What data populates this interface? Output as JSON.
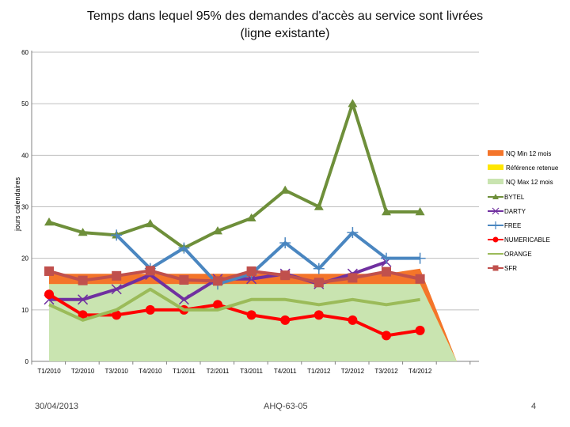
{
  "chart_data": {
    "type": "line",
    "title_line1": "Temps dans lequel 95% des demandes d'accès au service sont livrées",
    "title_line2": "(ligne existante)",
    "ylabel": "jours calendaires",
    "ylim": [
      0,
      60
    ],
    "yticks": [
      0,
      10,
      20,
      30,
      40,
      50,
      60
    ],
    "categories": [
      "T1/2010",
      "T2/2010",
      "T3/2010",
      "T4/2010",
      "T1/2011",
      "T2/2011",
      "T3/2011",
      "T4/2011",
      "T1/2012",
      "T2/2012",
      "T3/2012",
      "T4/2012"
    ],
    "bands": {
      "nq_max": {
        "name": "NQ Max 12 mois",
        "color": "#c9e4b0",
        "values": [
          15,
          15,
          15,
          15,
          15,
          15,
          15,
          15,
          15,
          15,
          15,
          15
        ],
        "end_value": 0
      },
      "reference": {
        "name": "Référence retenue",
        "color": "#ffe600",
        "values": [
          15,
          15,
          15,
          15,
          15,
          15,
          15,
          15,
          15,
          15,
          15,
          15
        ],
        "end_value": 0
      },
      "nq_min": {
        "name": "NQ Min 12 mois",
        "color": "#f4752a",
        "values": [
          17,
          17,
          17,
          17,
          17,
          17,
          17,
          17,
          17,
          17,
          17,
          18
        ],
        "end_value": 0
      }
    },
    "series": [
      {
        "name": "BYTEL",
        "color": "#6e8f3a",
        "marker": "triangle",
        "width": 4,
        "values": [
          27,
          25,
          24.5,
          26.7,
          22,
          25.3,
          27.8,
          33.2,
          30,
          50,
          29,
          29
        ]
      },
      {
        "name": "DARTY",
        "color": "#7030a0",
        "marker": "x",
        "width": 4,
        "values": [
          12,
          12,
          14,
          16.8,
          12,
          16,
          16,
          17,
          15,
          17,
          19.3,
          null
        ]
      },
      {
        "name": "FREE",
        "color": "#4a86c0",
        "marker": "plus",
        "width": 4,
        "values": [
          null,
          null,
          24.5,
          18,
          22,
          15,
          17,
          23,
          18,
          25,
          20,
          20
        ]
      },
      {
        "name": "NUMERICABLE",
        "color": "#ff0000",
        "marker": "circle",
        "width": 4,
        "values": [
          13,
          9,
          9,
          10,
          10,
          11,
          9,
          8,
          9,
          8,
          5,
          6
        ]
      },
      {
        "name": "ORANGE",
        "color": "#9bbb59",
        "marker": "none",
        "width": 4,
        "values": [
          11,
          8,
          10,
          14,
          10,
          10,
          12,
          12,
          11,
          12,
          11,
          12
        ]
      },
      {
        "name": "SFR",
        "color": "#c0504d",
        "marker": "square",
        "width": 4,
        "values": [
          17.5,
          15.7,
          16.6,
          17.6,
          15.8,
          15.6,
          17.5,
          16.7,
          15.3,
          16.2,
          17.4,
          16
        ]
      }
    ]
  },
  "footer": {
    "date": "30/04/2013",
    "reference": "AHQ-63-05",
    "page": "4"
  }
}
